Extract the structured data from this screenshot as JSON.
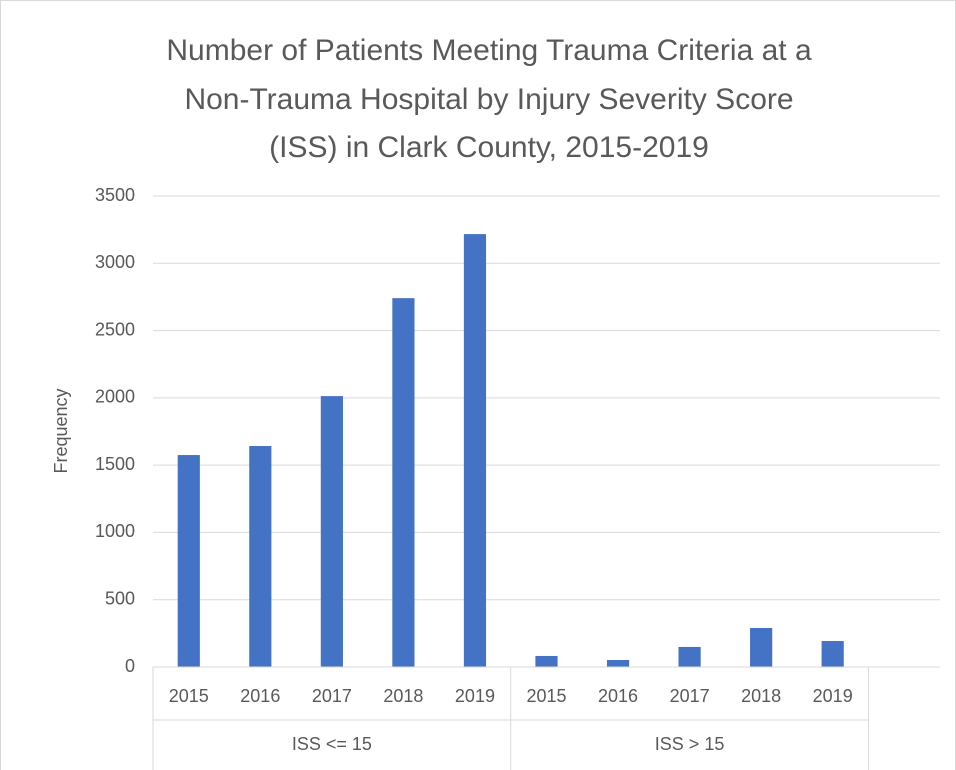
{
  "chart_data": {
    "type": "bar",
    "title": [
      "Number of Patients Meeting Trauma Criteria at a",
      "Non-Trauma Hospital by Injury Severity Score",
      "(ISS) in Clark County, 2015-2019"
    ],
    "ylabel": "Frequency",
    "categories": [
      "2015",
      "2016",
      "2017",
      "2018",
      "2019",
      "2015",
      "2016",
      "2017",
      "2018",
      "2019",
      null
    ],
    "category_groups": [
      "ISS <= 15",
      "ISS <= 15",
      "ISS <= 15",
      "ISS <= 15",
      "ISS <= 15",
      "ISS > 15",
      "ISS > 15",
      "ISS > 15",
      "ISS > 15",
      "ISS > 15",
      null
    ],
    "values": [
      1575,
      1642,
      2013,
      2741,
      3217,
      82,
      52,
      149,
      290,
      193,
      null
    ],
    "color": "#4472c4",
    "ylim": [
      0,
      3500
    ],
    "yticks": [
      0,
      500,
      1000,
      1500,
      2000,
      2500,
      3000,
      3500
    ],
    "grid": true
  }
}
